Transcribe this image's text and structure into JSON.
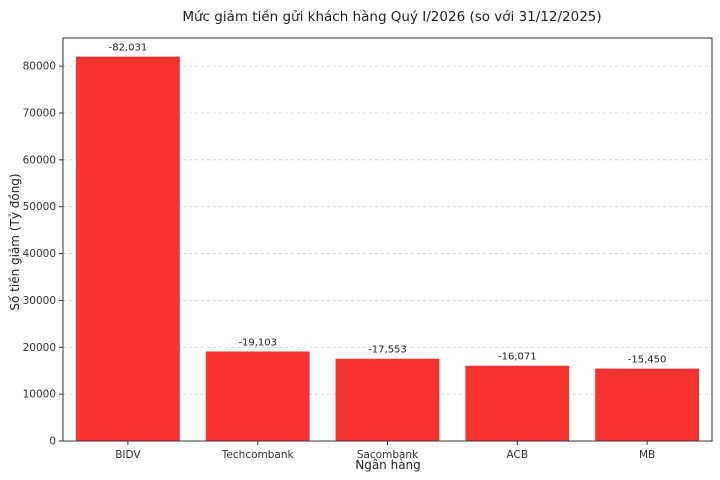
{
  "chart_data": {
    "type": "bar",
    "title": "Mức giảm tiền gửi khách hàng Quý I/2026 (so với 31/12/2025)",
    "xlabel": "Ngân hàng",
    "ylabel": "Số tiền giảm (Tỷ đồng)",
    "categories": [
      "BIDV",
      "Techcombank",
      "Sacombank",
      "ACB",
      "MB"
    ],
    "values": [
      82031,
      19103,
      17553,
      16071,
      15450
    ],
    "data_labels": [
      "-82,031",
      "-19,103",
      "-17,553",
      "-16,071",
      "-15,450"
    ],
    "ylim": [
      0,
      86000
    ],
    "yticks": [
      0,
      10000,
      20000,
      30000,
      40000,
      50000,
      60000,
      70000,
      80000
    ],
    "grid": "horizontal-dashed",
    "bar_color": "#f53432",
    "legend": "none"
  }
}
